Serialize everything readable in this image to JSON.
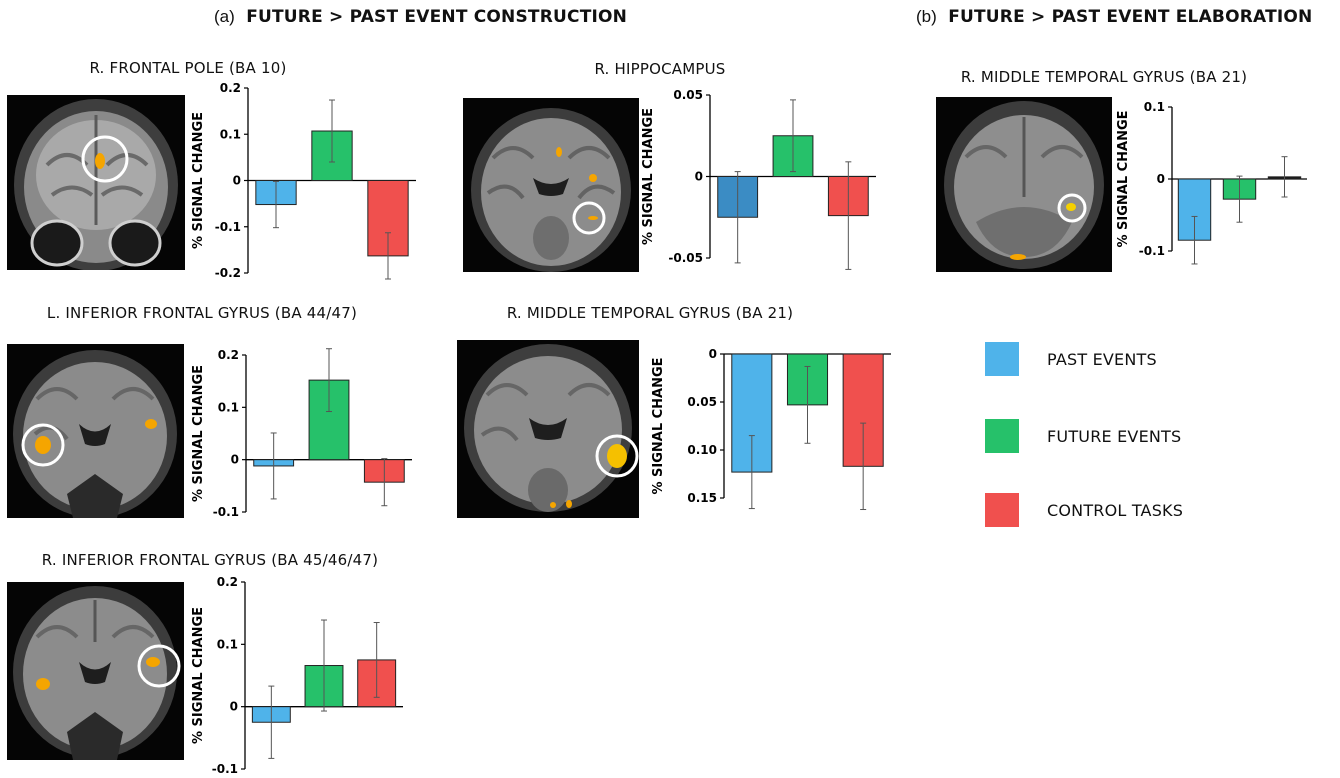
{
  "headers": {
    "a": {
      "label": "(a)",
      "text": "FUTURE  >  PAST EVENT CONSTRUCTION"
    },
    "b": {
      "label": "(b)",
      "text": "FUTURE  >  PAST EVENT ELABORATION"
    }
  },
  "legend": {
    "items": [
      {
        "label": "PAST EVENTS",
        "color": "#4fb3ea"
      },
      {
        "label": "FUTURE EVENTS",
        "color": "#26c16a"
      },
      {
        "label": "CONTROL TASKS",
        "color": "#f0504e"
      }
    ]
  },
  "chart_data": [
    {
      "type": "bar",
      "title": "R. FRONTAL POLE (BA 10)",
      "ylabel": "% SIGNAL CHANGE",
      "categories": [
        "PAST EVENTS",
        "FUTURE EVENTS",
        "CONTROL TASKS"
      ],
      "values": [
        -0.052,
        0.107,
        -0.163
      ],
      "errors": [
        0.05,
        0.067,
        0.05
      ],
      "ylim": [
        -0.2,
        0.2
      ],
      "yticks": [
        "0.2",
        "0.1",
        "0",
        "-0.1",
        "-0.2"
      ],
      "colors": [
        "#4fb3ea",
        "#26c16a",
        "#f0504e"
      ]
    },
    {
      "type": "bar",
      "title": "R. HIPPOCAMPUS",
      "ylabel": "% SIGNAL CHANGE",
      "categories": [
        "PAST EVENTS",
        "FUTURE EVENTS",
        "CONTROL TASKS"
      ],
      "values": [
        -0.025,
        0.025,
        -0.024
      ],
      "errors": [
        0.028,
        0.022,
        0.033
      ],
      "ylim": [
        -0.05,
        0.05
      ],
      "yticks": [
        "0.05",
        "0",
        "-0.05"
      ],
      "colors": [
        "#3b8cc4",
        "#26c16a",
        "#f0504e"
      ]
    },
    {
      "type": "bar",
      "title": "L. INFERIOR FRONTAL GYRUS (BA 44/47)",
      "ylabel": "% SIGNAL CHANGE",
      "categories": [
        "PAST EVENTS",
        "FUTURE EVENTS",
        "CONTROL TASKS"
      ],
      "values": [
        -0.012,
        0.152,
        -0.043
      ],
      "errors": [
        0.063,
        0.06,
        0.045
      ],
      "ylim": [
        -0.1,
        0.2
      ],
      "yticks": [
        "0.2",
        "0.1",
        "0",
        "-0.1"
      ],
      "colors": [
        "#4fb3ea",
        "#26c16a",
        "#f0504e"
      ]
    },
    {
      "type": "bar",
      "title": "R. MIDDLE TEMPORAL GYRUS (BA 21)",
      "ylabel": "% SIGNAL CHANGE",
      "categories": [
        "PAST EVENTS",
        "FUTURE EVENTS",
        "CONTROL TASKS"
      ],
      "values": [
        -0.123,
        -0.053,
        -0.117
      ],
      "errors": [
        0.038,
        0.04,
        0.045
      ],
      "ylim": [
        -0.15,
        0
      ],
      "yticks": [
        "0",
        "0.05",
        "0.10",
        "0.15"
      ],
      "colors": [
        "#4fb3ea",
        "#26c16a",
        "#f0504e"
      ]
    },
    {
      "type": "bar",
      "title": "R. INFERIOR FRONTAL GYRUS (BA 45/46/47)",
      "ylabel": "% SIGNAL CHANGE",
      "categories": [
        "PAST EVENTS",
        "FUTURE EVENTS",
        "CONTROL TASKS"
      ],
      "values": [
        -0.025,
        0.066,
        0.075
      ],
      "errors": [
        0.058,
        0.073,
        0.06
      ],
      "ylim": [
        -0.1,
        0.2
      ],
      "yticks": [
        "0.2",
        "0.1",
        "0",
        "-0.1"
      ],
      "colors": [
        "#4fb3ea",
        "#26c16a",
        "#f0504e"
      ]
    },
    {
      "type": "bar",
      "title": "R. MIDDLE TEMPORAL GYRUS (BA 21)",
      "ylabel": "% SIGNAL CHANGE",
      "categories": [
        "PAST EVENTS",
        "FUTURE EVENTS",
        "CONTROL TASKS"
      ],
      "values": [
        -0.085,
        -0.028,
        0.003
      ],
      "errors": [
        0.033,
        0.032,
        0.028
      ],
      "ylim": [
        -0.1,
        0.1
      ],
      "yticks": [
        "0.1",
        "0",
        "-0.1"
      ],
      "colors": [
        "#4fb3ea",
        "#26c16a",
        "#1a1a1a"
      ]
    }
  ]
}
